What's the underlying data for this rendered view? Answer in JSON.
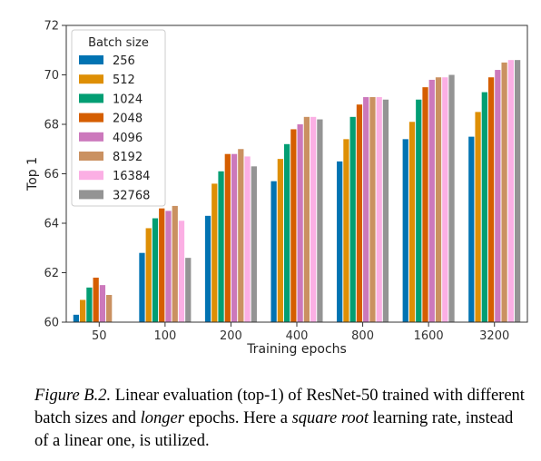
{
  "chart_data": {
    "type": "bar",
    "title": "",
    "xlabel": "Training epochs",
    "ylabel": "Top 1",
    "categories": [
      "50",
      "100",
      "200",
      "400",
      "800",
      "1600",
      "3200"
    ],
    "ylim": [
      60,
      72
    ],
    "yticks": [
      "60",
      "62",
      "64",
      "66",
      "68",
      "70",
      "72"
    ],
    "grid": false,
    "legend": {
      "title": "Batch size",
      "position": "top-left"
    },
    "series": [
      {
        "name": "256",
        "color": "#0173b2",
        "values": [
          60.3,
          62.8,
          64.3,
          65.7,
          66.5,
          67.4,
          67.5
        ]
      },
      {
        "name": "512",
        "color": "#de8f05",
        "values": [
          60.9,
          63.8,
          65.6,
          66.6,
          67.4,
          68.1,
          68.5
        ]
      },
      {
        "name": "1024",
        "color": "#029e73",
        "values": [
          61.4,
          64.2,
          66.1,
          67.2,
          68.3,
          69.0,
          69.3
        ]
      },
      {
        "name": "2048",
        "color": "#d55e00",
        "values": [
          61.8,
          64.6,
          66.8,
          67.8,
          68.8,
          69.5,
          69.9
        ]
      },
      {
        "name": "4096",
        "color": "#cc78bc",
        "values": [
          61.5,
          64.5,
          66.8,
          68.0,
          69.1,
          69.8,
          70.2
        ]
      },
      {
        "name": "8192",
        "color": "#ca9161",
        "values": [
          61.1,
          64.7,
          67.0,
          68.3,
          69.1,
          69.9,
          70.5
        ]
      },
      {
        "name": "16384",
        "color": "#fbafe4",
        "values": [
          null,
          64.1,
          66.7,
          68.3,
          69.1,
          69.9,
          70.6
        ]
      },
      {
        "name": "32768",
        "color": "#949494",
        "values": [
          null,
          62.6,
          66.3,
          68.2,
          69.0,
          70.0,
          70.6
        ]
      }
    ]
  },
  "caption": {
    "label": "Figure B.2.",
    "part1": " Linear evaluation (top-1) of ResNet-50 trained with different batch sizes and ",
    "emph1": "longer",
    "part2": " epochs. Here a ",
    "emph2": "square root",
    "part3": " learning rate, instead of a linear one, is utilized."
  }
}
